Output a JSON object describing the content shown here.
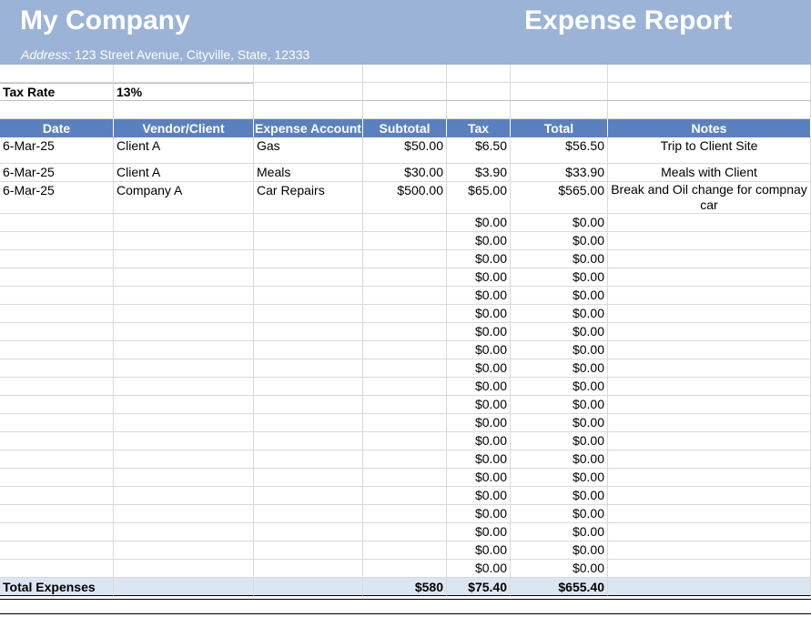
{
  "header": {
    "company": "My Company",
    "title": "Expense Report",
    "address_label": "Address:",
    "address_value": "123 Street Avenue, Cityville, State, 12333"
  },
  "tax": {
    "label": "Tax Rate",
    "value": "13%"
  },
  "columns": [
    "Date",
    "Vendor/Client",
    "Expense Account",
    "Subtotal",
    "Tax",
    "Total",
    "Notes"
  ],
  "rows": [
    [
      "6-Mar-25",
      "Client A",
      "Gas",
      "$50.00",
      "$6.50",
      "$56.50",
      "Trip to Client Site"
    ],
    [
      "6-Mar-25",
      "Client A",
      "Meals",
      "$30.00",
      "$3.90",
      "$33.90",
      "Meals with Client"
    ],
    [
      "6-Mar-25",
      "Company A",
      "Car Repairs",
      "$500.00",
      "$65.00",
      "$565.00",
      "Break and Oil change for compnay car"
    ]
  ],
  "empty_rows": [
    [
      "$0.00",
      "$0.00"
    ],
    [
      "$0.00",
      "$0.00"
    ],
    [
      "$0.00",
      "$0.00"
    ],
    [
      "$0.00",
      "$0.00"
    ],
    [
      "$0.00",
      "$0.00"
    ],
    [
      "$0.00",
      "$0.00"
    ],
    [
      "$0.00",
      "$0.00"
    ],
    [
      "$0.00",
      "$0.00"
    ],
    [
      "$0.00",
      "$0.00"
    ],
    [
      "$0.00",
      "$0.00"
    ],
    [
      "$0.00",
      "$0.00"
    ],
    [
      "$0.00",
      "$0.00"
    ],
    [
      "$0.00",
      "$0.00"
    ],
    [
      "$0.00",
      "$0.00"
    ],
    [
      "$0.00",
      "$0.00"
    ],
    [
      "$0.00",
      "$0.00"
    ],
    [
      "$0.00",
      "$0.00"
    ],
    [
      "$0.00",
      "$0.00"
    ],
    [
      "$0.00",
      "$0.00"
    ],
    [
      "$0.00",
      "$0.00"
    ]
  ],
  "totals": {
    "label": "Total Expenses",
    "subtotal": "$580",
    "tax": "$75.40",
    "total": "$655.40"
  }
}
